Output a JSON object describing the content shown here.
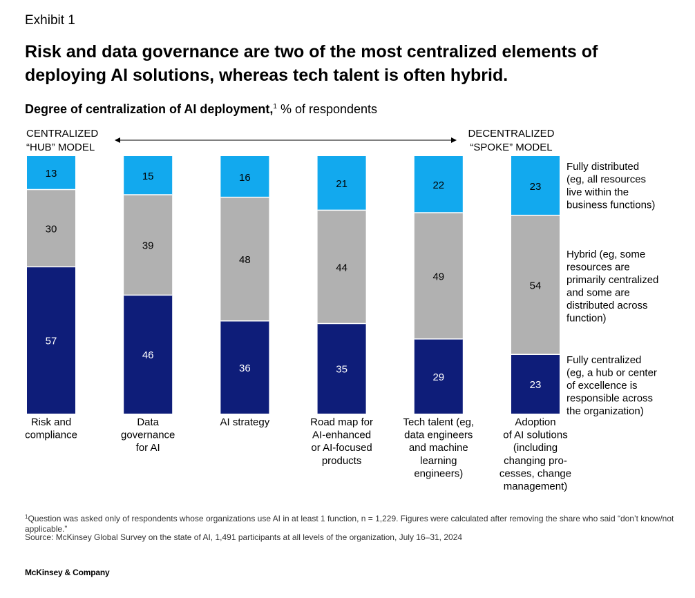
{
  "exhibit": "Exhibit 1",
  "title": "Risk and data governance are two of the most centralized elements of deploying AI solutions, whereas tech talent is often hybrid.",
  "subtitle": {
    "bold": "Degree of centralization of AI deployment,",
    "sup": "1",
    "rest": " % of respondents"
  },
  "poles": {
    "left": [
      "CENTRALIZED",
      "“HUB” MODEL"
    ],
    "right": [
      "DECENTRALIZED",
      "“SPOKE” MODEL"
    ]
  },
  "chart_data": {
    "type": "bar",
    "stacked": true,
    "orientation": "vertical",
    "unit": "% of respondents",
    "categories": [
      [
        "Risk and",
        "compliance"
      ],
      [
        "Data",
        "governance",
        "for AI"
      ],
      [
        "AI strategy"
      ],
      [
        "Road map for",
        "AI-enhanced",
        "or AI-focused",
        "products"
      ],
      [
        "Tech talent (eg,",
        "data engineers",
        "and machine",
        "learning",
        "engineers)"
      ],
      [
        "Adoption",
        "of AI solutions",
        "(including",
        "changing pro-",
        "cesses, change",
        "management)"
      ]
    ],
    "series": [
      {
        "name": "Fully centralized",
        "legend_lines": [
          "Fully centralized",
          "(eg, a hub or center",
          "of excellence is",
          "responsible across",
          "the organization)"
        ],
        "color": "#0e1d79",
        "label_color": "#ffffff",
        "values": [
          57,
          46,
          36,
          35,
          29,
          23
        ]
      },
      {
        "name": "Hybrid",
        "legend_lines": [
          "Hybrid (eg, some",
          "resources are",
          "primarily centralized",
          "and some are",
          "distributed across",
          "function)"
        ],
        "color": "#b1b1b1",
        "label_color": "#000000",
        "values": [
          30,
          39,
          48,
          44,
          49,
          54
        ]
      },
      {
        "name": "Fully distributed",
        "legend_lines": [
          "Fully distributed",
          "(eg, all resources",
          "live within the",
          "business functions)"
        ],
        "color": "#12a9ee",
        "label_color": "#000000",
        "values": [
          13,
          15,
          16,
          21,
          22,
          23
        ]
      }
    ],
    "legend_position": "right",
    "grid": false
  },
  "footnote": {
    "sup": "1",
    "text": "Question was asked only of respondents whose organizations use AI in at least 1 function, n = 1,229. Figures were calculated after removing the share who said “don’t know/not applicable.”"
  },
  "source": "Source: McKinsey Global Survey on the state of AI, 1,491 participants at all levels of the organization, July 16–31, 2024",
  "brand": "McKinsey & Company"
}
